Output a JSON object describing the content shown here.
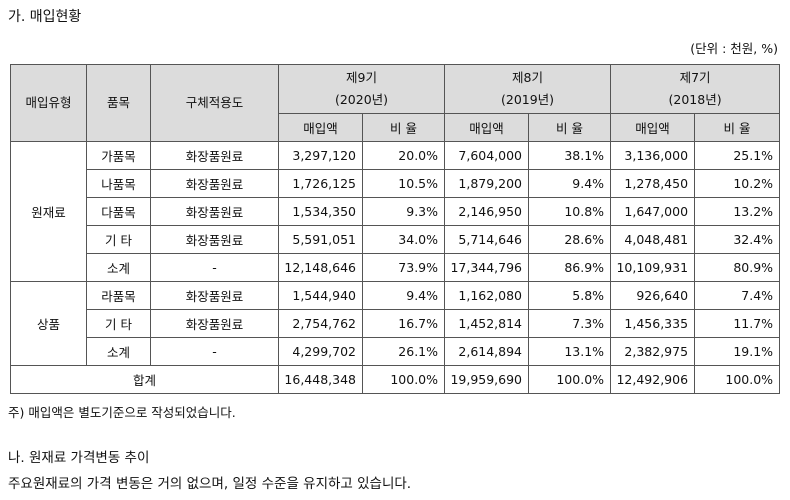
{
  "heading": "가. 매입현황",
  "unit": "(단위 : 천원, %)",
  "table": {
    "h_type": "매입유형",
    "h_item": "품목",
    "h_use": "구체적용도",
    "years": [
      {
        "label": "제9기",
        "year": "(2020년)"
      },
      {
        "label": "제8기",
        "year": "(2019년)"
      },
      {
        "label": "제7기",
        "year": "(2018년)"
      }
    ],
    "h_amount": "매입액",
    "h_ratio": "비 율",
    "groups": [
      {
        "type": "원재료",
        "rows": [
          {
            "item": "가품목",
            "use": "화장품원료",
            "v": [
              "3,297,120",
              "20.0%",
              "7,604,000",
              "38.1%",
              "3,136,000",
              "25.1%"
            ]
          },
          {
            "item": "나품목",
            "use": "화장품원료",
            "v": [
              "1,726,125",
              "10.5%",
              "1,879,200",
              "9.4%",
              "1,278,450",
              "10.2%"
            ]
          },
          {
            "item": "다품목",
            "use": "화장품원료",
            "v": [
              "1,534,350",
              "9.3%",
              "2,146,950",
              "10.8%",
              "1,647,000",
              "13.2%"
            ]
          },
          {
            "item": "기 타",
            "use": "화장품원료",
            "v": [
              "5,591,051",
              "34.0%",
              "5,714,646",
              "28.6%",
              "4,048,481",
              "32.4%"
            ]
          },
          {
            "item": "소계",
            "use": "-",
            "v": [
              "12,148,646",
              "73.9%",
              "17,344,796",
              "86.9%",
              "10,109,931",
              "80.9%"
            ]
          }
        ]
      },
      {
        "type": "상품",
        "rows": [
          {
            "item": "라품목",
            "use": "화장품원료",
            "v": [
              "1,544,940",
              "9.4%",
              "1,162,080",
              "5.8%",
              "926,640",
              "7.4%"
            ]
          },
          {
            "item": "기 타",
            "use": "화장품원료",
            "v": [
              "2,754,762",
              "16.7%",
              "1,452,814",
              "7.3%",
              "1,456,335",
              "11.7%"
            ]
          },
          {
            "item": "소계",
            "use": "-",
            "v": [
              "4,299,702",
              "26.1%",
              "2,614,894",
              "13.1%",
              "2,382,975",
              "19.1%"
            ]
          }
        ]
      }
    ],
    "total": {
      "label": "합계",
      "v": [
        "16,448,348",
        "100.0%",
        "19,959,690",
        "100.0%",
        "12,492,906",
        "100.0%"
      ]
    }
  },
  "note": "주) 매입액은 별도기준으로 작성되었습니다.",
  "subheading": "나. 원재료 가격변동 추이",
  "body_text": "주요원재료의 가격 변동은 거의 없으며, 일정 수준을 유지하고 있습니다."
}
